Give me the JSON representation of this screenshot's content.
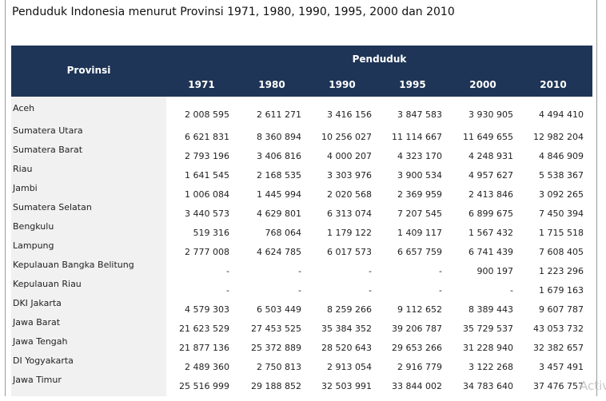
{
  "title": "Penduduk Indonesia menurut Provinsi 1971, 1980, 1990, 1995, 2000 dan 2010",
  "header": {
    "provinsi": "Provinsi",
    "penduduk": "Penduduk",
    "years": [
      "1971",
      "1980",
      "1990",
      "1995",
      "2000",
      "2010"
    ]
  },
  "rows": [
    {
      "provinsi": "Aceh",
      "values": [
        "2 008 595",
        "2 611 271",
        "3 416 156",
        "3 847 583",
        "3 930 905",
        "4 494 410"
      ]
    },
    {
      "provinsi": "Sumatera Utara",
      "values": [
        "6 621 831",
        "8 360 894",
        "10 256 027",
        "11 114 667",
        "11 649 655",
        "12 982 204"
      ]
    },
    {
      "provinsi": "Sumatera Barat",
      "values": [
        "2 793 196",
        "3 406 816",
        "4 000 207",
        "4 323 170",
        "4 248 931",
        "4 846 909"
      ]
    },
    {
      "provinsi": "Riau",
      "values": [
        "1 641 545",
        "2 168 535",
        "3 303 976",
        "3 900 534",
        "4 957 627",
        "5 538 367"
      ]
    },
    {
      "provinsi": "Jambi",
      "values": [
        "1 006 084",
        "1 445 994",
        "2 020 568",
        "2 369 959",
        "2 413 846",
        "3 092 265"
      ]
    },
    {
      "provinsi": "Sumatera Selatan",
      "values": [
        "3 440 573",
        "4 629 801",
        "6 313 074",
        "7 207 545",
        "6 899 675",
        "7 450 394"
      ]
    },
    {
      "provinsi": "Bengkulu",
      "values": [
        "519 316",
        "768 064",
        "1 179 122",
        "1 409 117",
        "1 567 432",
        "1 715 518"
      ]
    },
    {
      "provinsi": "Lampung",
      "values": [
        "2 777 008",
        "4 624 785",
        "6 017 573",
        "6 657 759",
        "6 741 439",
        "7 608 405"
      ]
    },
    {
      "provinsi": "Kepulauan Bangka Belitung",
      "values": [
        "-",
        "-",
        "-",
        "-",
        "900 197",
        "1 223 296"
      ]
    },
    {
      "provinsi": "Kepulauan Riau",
      "values": [
        "-",
        "-",
        "-",
        "-",
        "-",
        "1 679 163"
      ]
    },
    {
      "provinsi": "DKI Jakarta",
      "values": [
        "4 579 303",
        "6 503 449",
        "8 259 266",
        "9 112 652",
        "8 389 443",
        "9 607 787"
      ]
    },
    {
      "provinsi": "Jawa Barat",
      "values": [
        "21 623 529",
        "27 453 525",
        "35 384 352",
        "39 206 787",
        "35 729 537",
        "43 053 732"
      ]
    },
    {
      "provinsi": "Jawa Tengah",
      "values": [
        "21 877 136",
        "25 372 889",
        "28 520 643",
        "29 653 266",
        "31 228 940",
        "32 382 657"
      ]
    },
    {
      "provinsi": "DI Yogyakarta",
      "values": [
        "2 489 360",
        "2 750 813",
        "2 913 054",
        "2 916 779",
        "3 122 268",
        "3 457 491"
      ]
    },
    {
      "provinsi": "Jawa Timur",
      "values": [
        "25 516 999",
        "29 188 852",
        "32 503 991",
        "33 844 002",
        "34 783 640",
        "37 476 757"
      ]
    }
  ],
  "watermark": "Activ"
}
